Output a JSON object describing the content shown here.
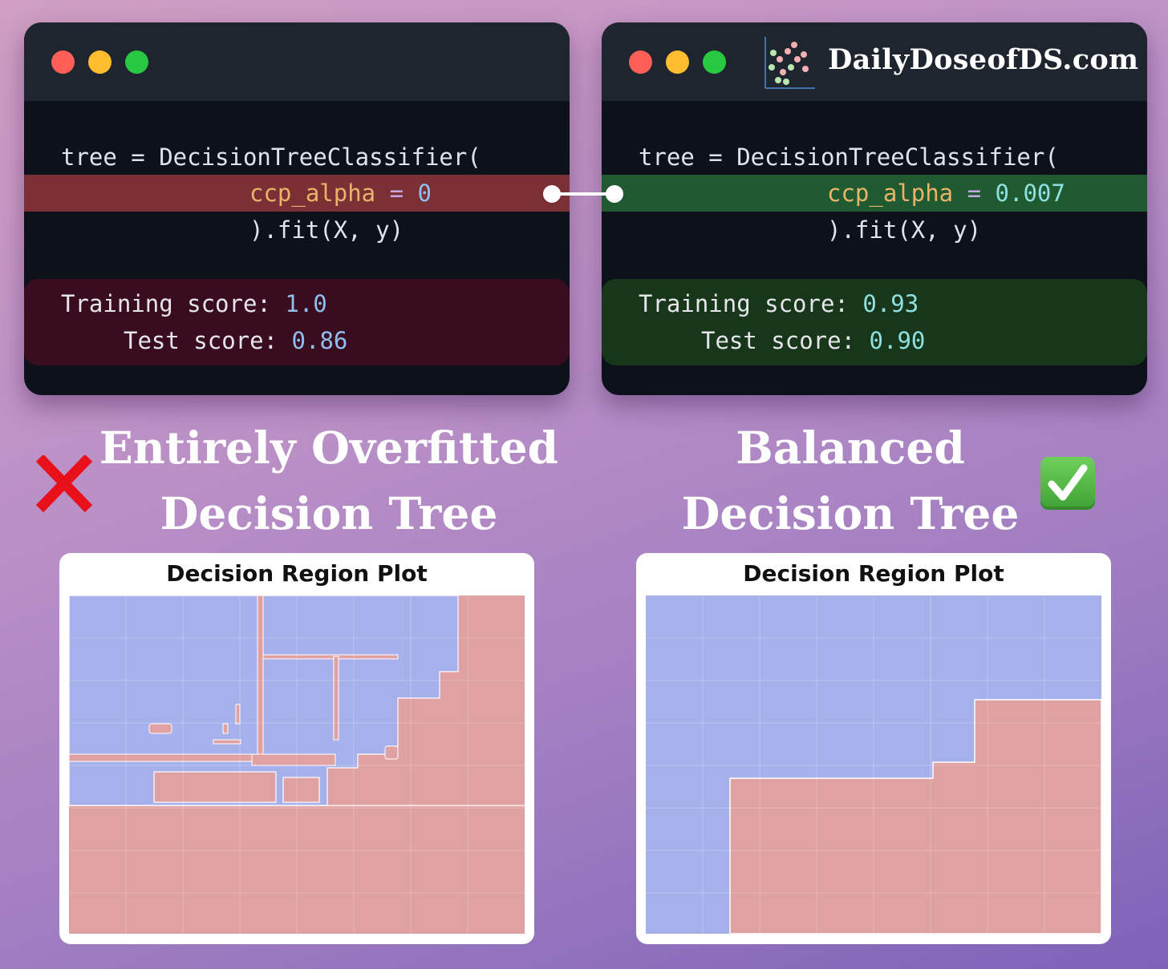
{
  "brand": {
    "name": "DailyDoseofDS.com"
  },
  "window_colors": {
    "close": "#ff5f57",
    "minimize": "#ffbd2e",
    "maximize": "#28c840"
  },
  "left_panel": {
    "code": {
      "line1": "tree = DecisionTreeClassifier(",
      "param": "ccp_alpha",
      "op": "=",
      "value": "0",
      "line3": ").fit(X, y)"
    },
    "training_label": "Training score:",
    "training_value": "1.0",
    "test_label": "Test score:",
    "test_value": "0.86",
    "heading_line1": "Entirely Overfitted",
    "heading_line2": "Decision Tree",
    "plot_title": "Decision Region Plot"
  },
  "right_panel": {
    "code": {
      "line1": "tree = DecisionTreeClassifier(",
      "param": "ccp_alpha",
      "op": "=",
      "value": "0.007",
      "line3": ").fit(X, y)"
    },
    "training_label": "Training score:",
    "training_value": "0.93",
    "test_label": "Test score:",
    "test_value": "0.90",
    "heading_line1": "Balanced",
    "heading_line2": "Decision Tree",
    "plot_title": "Decision Region Plot"
  },
  "colors": {
    "region_blue": "#a6b1ec",
    "region_red": "#e0a1a3",
    "highlight_bad": "#7a3034",
    "highlight_good": "#1f5a31"
  }
}
